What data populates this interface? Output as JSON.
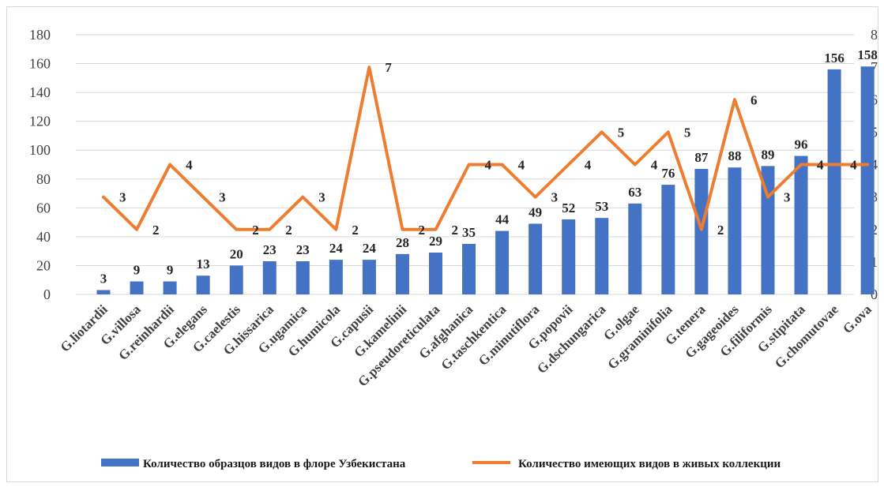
{
  "chart_data": {
    "type": "bar",
    "categories": [
      "G.liotardii",
      "G.villosa",
      "G.reinhardii",
      "G.elegans",
      "G.caelestis",
      "G.hissarica",
      "G.ugamica",
      "G.humicola",
      "G.capusii",
      "G.kamelinii",
      "G.pseudoreticulata",
      "G.afghanica",
      "G.taschkentica",
      "G.minutiflora",
      "G.popovii",
      "G.dschungarica",
      "G.olgae",
      "G.graminifolia",
      "G.tenera",
      "G.gageoides",
      "G.filiformis",
      "G.stipitata",
      "G.chomutovae",
      "G.ova"
    ],
    "series": [
      {
        "name": "Количество образцов видов в флоре Узбекистана",
        "type": "bar",
        "axis": "left",
        "color": "#4472c4",
        "values": [
          3,
          9,
          9,
          13,
          20,
          23,
          23,
          24,
          24,
          28,
          29,
          35,
          44,
          49,
          52,
          53,
          63,
          76,
          87,
          88,
          89,
          96,
          156,
          158
        ]
      },
      {
        "name": "Количество имеющих видов в живых коллекции",
        "type": "line",
        "axis": "right",
        "color": "#ed7d31",
        "values": [
          3,
          2,
          4,
          3,
          2,
          2,
          3,
          2,
          7,
          2,
          2,
          4,
          4,
          3,
          4,
          5,
          4,
          5,
          2,
          6,
          3,
          4,
          4,
          4
        ]
      }
    ],
    "ylim_left": [
      0,
      180
    ],
    "yticks_left": [
      "0",
      "20",
      "40",
      "60",
      "80",
      "100",
      "120",
      "140",
      "160",
      "180"
    ],
    "ylim_right": [
      0,
      8
    ],
    "yticks_right": [
      "0",
      "1",
      "2",
      "3",
      "4",
      "5",
      "6",
      "7",
      "8"
    ],
    "grid": true,
    "legend_position": "bottom"
  }
}
